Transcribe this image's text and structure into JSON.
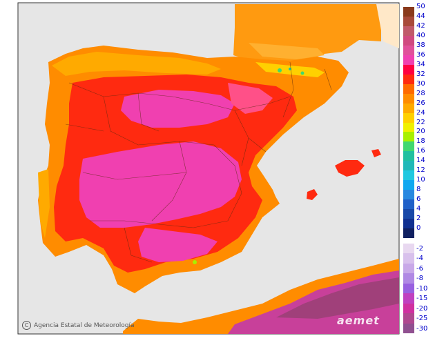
{
  "map": {
    "credit": "Agencia Estatal de Meteorología",
    "credit_symbol": "C",
    "logo": "aemet",
    "legend": {
      "top": [
        {
          "label": "50",
          "color": "#8a3a1c"
        },
        {
          "label": "44",
          "color": "#a84a3a"
        },
        {
          "label": "42",
          "color": "#c05a6a"
        },
        {
          "label": "40",
          "color": "#d04a80"
        },
        {
          "label": "38",
          "color": "#e0509a"
        },
        {
          "label": "36",
          "color": "#f040b0"
        },
        {
          "label": "34",
          "color": "#ff0040"
        },
        {
          "label": "32",
          "color": "#ff2a10"
        },
        {
          "label": "30",
          "color": "#ff6a00"
        },
        {
          "label": "28",
          "color": "#ff8c00"
        },
        {
          "label": "26",
          "color": "#ffaa00"
        },
        {
          "label": "24",
          "color": "#ffd000"
        },
        {
          "label": "22",
          "color": "#f0f000"
        },
        {
          "label": "20",
          "color": "#a8f000"
        },
        {
          "label": "18",
          "color": "#40d870"
        },
        {
          "label": "16",
          "color": "#20c0a0"
        },
        {
          "label": "14",
          "color": "#20b8b8"
        },
        {
          "label": "12",
          "color": "#20c8e0"
        },
        {
          "label": "10",
          "color": "#10a8f0"
        },
        {
          "label": "8",
          "color": "#2888e0"
        },
        {
          "label": "6",
          "color": "#2060c8"
        },
        {
          "label": "4",
          "color": "#1848a8"
        },
        {
          "label": "2",
          "color": "#103090"
        },
        {
          "label": "0",
          "color": "#102060"
        }
      ],
      "bottom": [
        {
          "label": "-2",
          "color": "#e8d8f0"
        },
        {
          "label": "-4",
          "color": "#d8c0ec"
        },
        {
          "label": "-6",
          "color": "#c8a8e8"
        },
        {
          "label": "-8",
          "color": "#b088e4"
        },
        {
          "label": "-10",
          "color": "#9860e0"
        },
        {
          "label": "-15",
          "color": "#c040c0"
        },
        {
          "label": "-20",
          "color": "#d030a0"
        },
        {
          "label": "-25",
          "color": "#b04890"
        },
        {
          "label": "-30",
          "color": "#905090"
        }
      ]
    }
  }
}
